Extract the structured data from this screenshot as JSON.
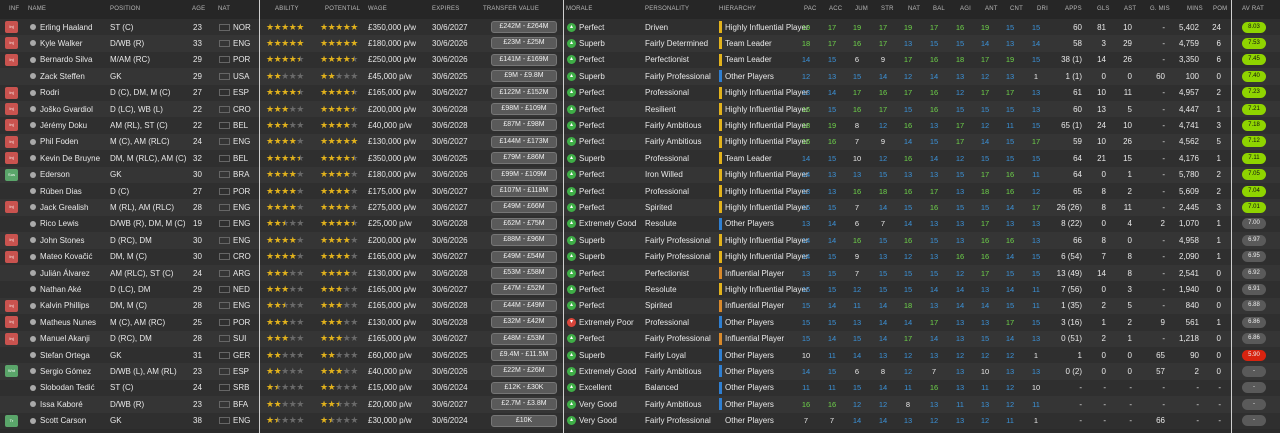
{
  "columns": {
    "inf": "INF",
    "name": "NAME",
    "position": "POSITION",
    "age": "AGE",
    "nat": "NAT",
    "ability": "ABILITY",
    "potential": "POTENTIAL",
    "wage": "WAGE",
    "expires": "EXPIRES",
    "transfer_value": "TRANSFER VALUE",
    "morale": "MORALE",
    "personality": "PERSONALITY",
    "hierarchy": "HIERARCHY",
    "pac": "PAC",
    "acc": "ACC",
    "jum": "JUM",
    "str": "STR",
    "nat2": "NAT",
    "bal": "BAL",
    "agi": "AGI",
    "ant": "ANT",
    "cnt": "CNT",
    "dri": "DRI",
    "apps": "APPS",
    "gls": "GLS",
    "ast": "AST",
    "gmis": "G. MIS",
    "mins": "MINS",
    "pom": "POM",
    "avrat": "AV RAT"
  },
  "colors": {
    "attr_high": "#6ed34a",
    "attr_mid": "#3b92d8",
    "attr_top": "#9be255",
    "bar_infl": "#2f7fd1",
    "bar_leader": "#e2b21c",
    "bar_mid": "#d98a2b",
    "avrat_green": "#8fd400",
    "avrat_grey": "#5a5a5a",
    "avrat_red": "#d82410"
  },
  "players": [
    {
      "inf": "Inj",
      "name": "Erling Haaland",
      "pos": "ST (C)",
      "age": "23",
      "nat": "NOR",
      "ab": 5,
      "pot": 5,
      "wage": "£350,000 p/w",
      "exp": "30/6/2027",
      "tv": "£242M - £264M",
      "morale": "Perfect",
      "pers": "Driven",
      "hier": "Highly Influential Player",
      "hb": "leader",
      "pac": "19",
      "acc": "17",
      "jum": "19",
      "str": "17",
      "nat2": "19",
      "bal": "17",
      "agi": "16",
      "ant": "19",
      "cnt": "15",
      "dri": "15",
      "apps": "60",
      "gls": "81",
      "ast": "10",
      "gmis": "-",
      "mins": "5,402",
      "pom": "24",
      "avrat": "8.03",
      "avc": "green"
    },
    {
      "inf": "Inj",
      "name": "Kyle Walker",
      "pos": "D/WB (R)",
      "age": "33",
      "nat": "ENG",
      "ab": 5,
      "pot": 5,
      "wage": "£180,000 p/w",
      "exp": "30/6/2026",
      "tv": "£23M - £25M",
      "morale": "Superb",
      "pers": "Fairly Determined",
      "hier": "Team Leader",
      "hb": "leader",
      "pac": "18",
      "acc": "17",
      "jum": "16",
      "str": "17",
      "nat2": "13",
      "bal": "15",
      "agi": "15",
      "ant": "14",
      "cnt": "13",
      "dri": "14",
      "apps": "58",
      "gls": "3",
      "ast": "29",
      "gmis": "-",
      "mins": "4,759",
      "pom": "6",
      "avrat": "7.53",
      "avc": "green"
    },
    {
      "inf": "Inj",
      "name": "Bernardo Silva",
      "pos": "M/AM (RC)",
      "age": "29",
      "nat": "POR",
      "ab": 4.5,
      "pot": 4.5,
      "wage": "£250,000 p/w",
      "exp": "30/6/2026",
      "tv": "£141M - £169M",
      "morale": "Perfect",
      "pers": "Perfectionist",
      "hier": "Team Leader",
      "hb": "leader",
      "pac": "14",
      "acc": "15",
      "jum": "6",
      "str": "9",
      "nat2": "17",
      "bal": "16",
      "agi": "18",
      "ant": "17",
      "cnt": "19",
      "dri": "15",
      "apps": "38 (1)",
      "gls": "14",
      "ast": "26",
      "gmis": "-",
      "mins": "3,350",
      "pom": "6",
      "avrat": "7.45",
      "avc": "green"
    },
    {
      "inf": "",
      "name": "Zack Steffen",
      "pos": "GK",
      "age": "29",
      "nat": "USA",
      "ab": 2,
      "pot": 2,
      "wage": "£45,000 p/w",
      "exp": "30/6/2025",
      "tv": "£9M - £9.8M",
      "morale": "Superb",
      "pers": "Fairly Professional",
      "hier": "Other Players",
      "hb": "infl",
      "pac": "12",
      "acc": "13",
      "jum": "15",
      "str": "14",
      "nat2": "12",
      "bal": "14",
      "agi": "13",
      "ant": "12",
      "cnt": "13",
      "dri": "1",
      "apps": "1 (1)",
      "gls": "0",
      "ast": "0",
      "gmis": "60",
      "mins": "100",
      "pom": "0",
      "avrat": "7.40",
      "avc": "green"
    },
    {
      "inf": "Inj",
      "name": "Rodri",
      "pos": "D (C), DM, M (C)",
      "age": "27",
      "nat": "ESP",
      "ab": 4.5,
      "pot": 4.5,
      "wage": "£165,000 p/w",
      "exp": "30/6/2027",
      "tv": "£122M - £152M",
      "morale": "Perfect",
      "pers": "Professional",
      "hier": "Highly Influential Player",
      "hb": "leader",
      "pac": "13",
      "acc": "14",
      "jum": "17",
      "str": "16",
      "nat2": "17",
      "bal": "16",
      "agi": "12",
      "ant": "17",
      "cnt": "17",
      "dri": "13",
      "apps": "61",
      "gls": "10",
      "ast": "11",
      "gmis": "-",
      "mins": "4,957",
      "pom": "2",
      "avrat": "7.23",
      "avc": "green"
    },
    {
      "inf": "Inj",
      "name": "Joško Gvardiol",
      "pos": "D (LC), WB (L)",
      "age": "22",
      "nat": "CRO",
      "ab": 3,
      "pot": 4.5,
      "wage": "£200,000 p/w",
      "exp": "30/6/2028",
      "tv": "£98M - £109M",
      "morale": "Perfect",
      "pers": "Resilient",
      "hier": "Highly Influential Player",
      "hb": "leader",
      "pac": "16",
      "acc": "15",
      "jum": "16",
      "str": "17",
      "nat2": "15",
      "bal": "16",
      "agi": "15",
      "ant": "15",
      "cnt": "15",
      "dri": "13",
      "apps": "60",
      "gls": "13",
      "ast": "5",
      "gmis": "-",
      "mins": "4,447",
      "pom": "1",
      "avrat": "7.21",
      "avc": "green"
    },
    {
      "inf": "Inj",
      "name": "Jérémy Doku",
      "pos": "AM (RL), ST (C)",
      "age": "22",
      "nat": "BEL",
      "ab": 3,
      "pot": 4,
      "wage": "£40,000 p/w",
      "exp": "30/6/2028",
      "tv": "£87M - £98M",
      "morale": "Perfect",
      "pers": "Fairly Ambitious",
      "hier": "Highly Influential Player",
      "hb": "leader",
      "pac": "18",
      "acc": "19",
      "jum": "8",
      "str": "12",
      "nat2": "16",
      "bal": "13",
      "agi": "17",
      "ant": "12",
      "cnt": "11",
      "dri": "15",
      "apps": "65 (1)",
      "gls": "24",
      "ast": "10",
      "gmis": "-",
      "mins": "4,741",
      "pom": "3",
      "avrat": "7.18",
      "avc": "green"
    },
    {
      "inf": "Inj",
      "name": "Phil Foden",
      "pos": "M (C), AM (RLC)",
      "age": "24",
      "nat": "ENG",
      "ab": 4,
      "pot": 5,
      "wage": "£130,000 p/w",
      "exp": "30/6/2027",
      "tv": "£144M - £173M",
      "morale": "Perfect",
      "pers": "Fairly Ambitious",
      "hier": "Highly Influential Player",
      "hb": "leader",
      "pac": "16",
      "acc": "16",
      "jum": "7",
      "str": "9",
      "nat2": "14",
      "bal": "15",
      "agi": "17",
      "ant": "14",
      "cnt": "15",
      "dri": "17",
      "apps": "59",
      "gls": "10",
      "ast": "26",
      "gmis": "-",
      "mins": "4,562",
      "pom": "5",
      "avrat": "7.12",
      "avc": "green"
    },
    {
      "inf": "Inj",
      "name": "Kevin De Bruyne",
      "pos": "DM, M (RLC), AM (C)",
      "age": "32",
      "nat": "BEL",
      "ab": 4.5,
      "pot": 4.5,
      "wage": "£350,000 p/w",
      "exp": "30/6/2025",
      "tv": "£79M - £86M",
      "morale": "Superb",
      "pers": "Professional",
      "hier": "Team Leader",
      "hb": "leader",
      "pac": "14",
      "acc": "15",
      "jum": "10",
      "str": "12",
      "nat2": "16",
      "bal": "14",
      "agi": "12",
      "ant": "15",
      "cnt": "15",
      "dri": "15",
      "apps": "64",
      "gls": "21",
      "ast": "15",
      "gmis": "-",
      "mins": "4,176",
      "pom": "1",
      "avrat": "7.11",
      "avc": "green"
    },
    {
      "inf": "Sus",
      "name": "Ederson",
      "pos": "GK",
      "age": "30",
      "nat": "BRA",
      "ab": 4,
      "pot": 4,
      "wage": "£180,000 p/w",
      "exp": "30/6/2026",
      "tv": "£99M - £109M",
      "morale": "Perfect",
      "pers": "Iron Willed",
      "hier": "Highly Influential Player",
      "hb": "leader",
      "pac": "14",
      "acc": "13",
      "jum": "13",
      "str": "15",
      "nat2": "13",
      "bal": "13",
      "agi": "15",
      "ant": "17",
      "cnt": "16",
      "dri": "11",
      "apps": "64",
      "gls": "0",
      "ast": "1",
      "gmis": "-",
      "mins": "5,780",
      "pom": "2",
      "avrat": "7.05",
      "avc": "green"
    },
    {
      "inf": "",
      "name": "Rúben Dias",
      "pos": "D (C)",
      "age": "27",
      "nat": "POR",
      "ab": 4,
      "pot": 4,
      "wage": "£175,000 p/w",
      "exp": "30/6/2027",
      "tv": "£107M - £118M",
      "morale": "Perfect",
      "pers": "Professional",
      "hier": "Highly Influential Player",
      "hb": "leader",
      "pac": "13",
      "acc": "13",
      "jum": "16",
      "str": "18",
      "nat2": "16",
      "bal": "17",
      "agi": "13",
      "ant": "18",
      "cnt": "16",
      "dri": "12",
      "apps": "65",
      "gls": "8",
      "ast": "2",
      "gmis": "-",
      "mins": "5,609",
      "pom": "2",
      "avrat": "7.04",
      "avc": "green"
    },
    {
      "inf": "Inj",
      "name": "Jack Grealish",
      "pos": "M (RL), AM (RLC)",
      "age": "28",
      "nat": "ENG",
      "ab": 4,
      "pot": 4,
      "wage": "£275,000 p/w",
      "exp": "30/6/2027",
      "tv": "£49M - £66M",
      "morale": "Perfect",
      "pers": "Spirited",
      "hier": "Highly Influential Player",
      "hb": "leader",
      "pac": "15",
      "acc": "15",
      "jum": "7",
      "str": "14",
      "nat2": "15",
      "bal": "16",
      "agi": "15",
      "ant": "15",
      "cnt": "14",
      "dri": "17",
      "apps": "26 (26)",
      "gls": "8",
      "ast": "11",
      "gmis": "-",
      "mins": "2,445",
      "pom": "3",
      "avrat": "7.01",
      "avc": "green"
    },
    {
      "inf": "",
      "name": "Rico Lewis",
      "pos": "D/WB (R), DM, M (C)",
      "age": "19",
      "nat": "ENG",
      "ab": 2.5,
      "pot": 4.5,
      "wage": "£25,000 p/w",
      "exp": "30/6/2028",
      "tv": "£62M - £75M",
      "morale": "Extremely Good",
      "pers": "Resolute",
      "hier": "Other Players",
      "hb": "infl",
      "pac": "13",
      "acc": "14",
      "jum": "6",
      "str": "7",
      "nat2": "14",
      "bal": "13",
      "agi": "13",
      "ant": "17",
      "cnt": "13",
      "dri": "13",
      "apps": "8 (22)",
      "gls": "0",
      "ast": "4",
      "gmis": "2",
      "mins": "1,070",
      "pom": "1",
      "avrat": "7.00",
      "avc": "grey"
    },
    {
      "inf": "Inj",
      "name": "John Stones",
      "pos": "D (RC), DM",
      "age": "30",
      "nat": "ENG",
      "ab": 4,
      "pot": 4,
      "wage": "£200,000 p/w",
      "exp": "30/6/2026",
      "tv": "£88M - £96M",
      "morale": "Superb",
      "pers": "Fairly Professional",
      "hier": "Highly Influential Player",
      "hb": "leader",
      "pac": "14",
      "acc": "14",
      "jum": "16",
      "str": "15",
      "nat2": "16",
      "bal": "15",
      "agi": "13",
      "ant": "16",
      "cnt": "16",
      "dri": "13",
      "apps": "66",
      "gls": "8",
      "ast": "0",
      "gmis": "-",
      "mins": "4,958",
      "pom": "1",
      "avrat": "6.97",
      "avc": "grey"
    },
    {
      "inf": "Inj",
      "name": "Mateo Kovačić",
      "pos": "DM, M (C)",
      "age": "30",
      "nat": "CRO",
      "ab": 4,
      "pot": 4,
      "wage": "£165,000 p/w",
      "exp": "30/6/2027",
      "tv": "£49M - £54M",
      "morale": "Superb",
      "pers": "Fairly Professional",
      "hier": "Highly Influential Player",
      "hb": "leader",
      "pac": "14",
      "acc": "15",
      "jum": "9",
      "str": "13",
      "nat2": "12",
      "bal": "13",
      "agi": "16",
      "ant": "16",
      "cnt": "14",
      "dri": "15",
      "apps": "6 (54)",
      "gls": "7",
      "ast": "8",
      "gmis": "-",
      "mins": "2,090",
      "pom": "1",
      "avrat": "6.95",
      "avc": "grey"
    },
    {
      "inf": "",
      "name": "Julián Álvarez",
      "pos": "AM (RLC), ST (C)",
      "age": "24",
      "nat": "ARG",
      "ab": 3,
      "pot": 4,
      "wage": "£130,000 p/w",
      "exp": "30/6/2028",
      "tv": "£53M - £58M",
      "morale": "Perfect",
      "pers": "Perfectionist",
      "hier": "Influential Player",
      "hb": "mid",
      "pac": "13",
      "acc": "15",
      "jum": "7",
      "str": "15",
      "nat2": "15",
      "bal": "15",
      "agi": "12",
      "ant": "17",
      "cnt": "15",
      "dri": "15",
      "apps": "13 (49)",
      "gls": "14",
      "ast": "8",
      "gmis": "-",
      "mins": "2,541",
      "pom": "0",
      "avrat": "6.92",
      "avc": "grey"
    },
    {
      "inf": "",
      "name": "Nathan Aké",
      "pos": "D (LC), DM",
      "age": "29",
      "nat": "NED",
      "ab": 3,
      "pot": 3,
      "wage": "£165,000 p/w",
      "exp": "30/6/2027",
      "tv": "£47M - £52M",
      "morale": "Perfect",
      "pers": "Resolute",
      "hier": "Highly Influential Player",
      "hb": "leader",
      "pac": "15",
      "acc": "15",
      "jum": "12",
      "str": "15",
      "nat2": "15",
      "bal": "14",
      "agi": "14",
      "ant": "13",
      "cnt": "14",
      "dri": "11",
      "apps": "7 (56)",
      "gls": "0",
      "ast": "3",
      "gmis": "-",
      "mins": "1,940",
      "pom": "0",
      "avrat": "6.91",
      "avc": "grey"
    },
    {
      "inf": "Inj",
      "name": "Kalvin Phillips",
      "pos": "DM, M (C)",
      "age": "28",
      "nat": "ENG",
      "ab": 2.5,
      "pot": 3,
      "wage": "£165,000 p/w",
      "exp": "30/6/2028",
      "tv": "£44M - £49M",
      "morale": "Perfect",
      "pers": "Spirited",
      "hier": "Influential Player",
      "hb": "mid",
      "pac": "15",
      "acc": "14",
      "jum": "11",
      "str": "14",
      "nat2": "18",
      "bal": "13",
      "agi": "14",
      "ant": "14",
      "cnt": "15",
      "dri": "11",
      "apps": "1 (35)",
      "gls": "2",
      "ast": "5",
      "gmis": "-",
      "mins": "840",
      "pom": "0",
      "avrat": "6.88",
      "avc": "grey"
    },
    {
      "inf": "Inj",
      "name": "Matheus Nunes",
      "pos": "M (C), AM (RC)",
      "age": "25",
      "nat": "POR",
      "ab": 3,
      "pot": 3,
      "wage": "£130,000 p/w",
      "exp": "30/6/2028",
      "tv": "£32M - £42M",
      "morale": "Extremely Poor",
      "pers": "Professional",
      "hier": "Other Players",
      "hb": "infl",
      "pac": "15",
      "acc": "15",
      "jum": "13",
      "str": "14",
      "nat2": "14",
      "bal": "17",
      "agi": "13",
      "ant": "13",
      "cnt": "17",
      "dri": "15",
      "apps": "3 (16)",
      "gls": "1",
      "ast": "2",
      "gmis": "9",
      "mins": "561",
      "pom": "1",
      "avrat": "6.86",
      "avc": "grey",
      "mood_bad": true
    },
    {
      "inf": "Inj",
      "name": "Manuel Akanji",
      "pos": "D (RC), DM",
      "age": "28",
      "nat": "SUI",
      "ab": 3,
      "pot": 3,
      "wage": "£165,000 p/w",
      "exp": "30/6/2027",
      "tv": "£48M - £53M",
      "morale": "Perfect",
      "pers": "Fairly Professional",
      "hier": "Influential Player",
      "hb": "mid",
      "pac": "15",
      "acc": "14",
      "jum": "15",
      "str": "14",
      "nat2": "17",
      "bal": "14",
      "agi": "13",
      "ant": "15",
      "cnt": "14",
      "dri": "13",
      "apps": "0 (51)",
      "gls": "2",
      "ast": "1",
      "gmis": "-",
      "mins": "1,218",
      "pom": "0",
      "avrat": "6.86",
      "avc": "grey"
    },
    {
      "inf": "",
      "name": "Stefan Ortega",
      "pos": "GK",
      "age": "31",
      "nat": "GER",
      "ab": 2,
      "pot": 2,
      "wage": "£60,000 p/w",
      "exp": "30/6/2025",
      "tv": "£9.4M - £11.5M",
      "morale": "Superb",
      "pers": "Fairly Loyal",
      "hier": "Other Players",
      "hb": "infl",
      "pac": "10",
      "acc": "11",
      "jum": "14",
      "str": "13",
      "nat2": "12",
      "bal": "13",
      "agi": "12",
      "ant": "12",
      "cnt": "12",
      "dri": "1",
      "apps": "1",
      "gls": "0",
      "ast": "0",
      "gmis": "65",
      "mins": "90",
      "pom": "0",
      "avrat": "5.90",
      "avc": "red"
    },
    {
      "inf": "Wnt",
      "name": "Sergio Gómez",
      "pos": "D/WB (L), AM (RL)",
      "age": "23",
      "nat": "ESP",
      "ab": 2,
      "pot": 3,
      "wage": "£40,000 p/w",
      "exp": "30/6/2026",
      "tv": "£22M - £26M",
      "morale": "Extremely Good",
      "pers": "Fairly Ambitious",
      "hier": "Other Players",
      "hb": "infl",
      "pac": "14",
      "acc": "15",
      "jum": "6",
      "str": "8",
      "nat2": "12",
      "bal": "7",
      "agi": "13",
      "ant": "10",
      "cnt": "13",
      "dri": "13",
      "apps": "0 (2)",
      "gls": "0",
      "ast": "0",
      "gmis": "57",
      "mins": "2",
      "pom": "0",
      "avrat": "-",
      "avc": "grey"
    },
    {
      "inf": "",
      "name": "Slobodan Tedić",
      "pos": "ST (C)",
      "age": "24",
      "nat": "SRB",
      "ab": 1.5,
      "pot": 2,
      "wage": "£15,000 p/w",
      "exp": "30/6/2024",
      "tv": "£12K - £30K",
      "morale": "Excellent",
      "pers": "Balanced",
      "hier": "Other Players",
      "hb": "infl",
      "pac": "11",
      "acc": "11",
      "jum": "15",
      "str": "14",
      "nat2": "11",
      "bal": "16",
      "agi": "13",
      "ant": "11",
      "cnt": "12",
      "dri": "10",
      "apps": "-",
      "gls": "-",
      "ast": "-",
      "gmis": "-",
      "mins": "-",
      "pom": "-",
      "avrat": "-",
      "avc": "grey"
    },
    {
      "inf": "",
      "name": "Issa Kaboré",
      "pos": "D/WB (R)",
      "age": "23",
      "nat": "BFA",
      "ab": 2,
      "pot": 2.5,
      "wage": "£20,000 p/w",
      "exp": "30/6/2027",
      "tv": "£2.7M - £3.8M",
      "morale": "Very Good",
      "pers": "Fairly Ambitious",
      "hier": "Other Players",
      "hb": "infl",
      "pac": "16",
      "acc": "16",
      "jum": "12",
      "str": "12",
      "nat2": "8",
      "bal": "13",
      "agi": "11",
      "ant": "13",
      "cnt": "12",
      "dri": "11",
      "apps": "-",
      "gls": "-",
      "ast": "-",
      "gmis": "-",
      "mins": "-",
      "pom": "-",
      "avrat": "-",
      "avc": "grey"
    },
    {
      "inf": "Tr",
      "name": "Scott Carson",
      "pos": "GK",
      "age": "38",
      "nat": "ENG",
      "ab": 1.5,
      "pot": 1.5,
      "wage": "£30,000 p/w",
      "exp": "30/6/2024",
      "tv": "£10K",
      "morale": "Very Good",
      "pers": "Fairly Professional",
      "hier": "Other Players",
      "hb": "none",
      "pac": "7",
      "acc": "7",
      "jum": "14",
      "str": "14",
      "nat2": "13",
      "bal": "12",
      "agi": "13",
      "ant": "12",
      "cnt": "11",
      "dri": "1",
      "apps": "-",
      "gls": "-",
      "ast": "-",
      "gmis": "66",
      "mins": "-",
      "pom": "-",
      "avrat": "-",
      "avc": "grey"
    }
  ]
}
